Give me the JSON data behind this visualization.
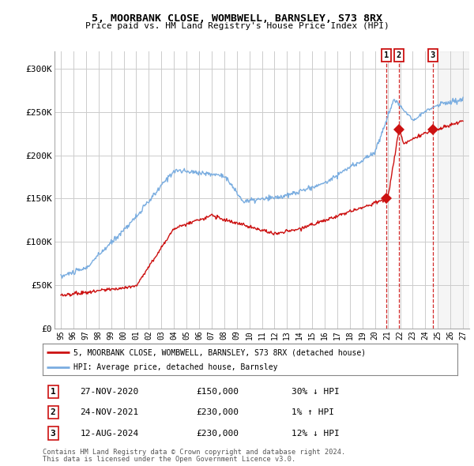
{
  "title": "5, MOORBANK CLOSE, WOMBWELL, BARNSLEY, S73 8RX",
  "subtitle": "Price paid vs. HM Land Registry's House Price Index (HPI)",
  "ylim": [
    0,
    320000
  ],
  "yticks": [
    0,
    50000,
    100000,
    150000,
    200000,
    250000,
    300000
  ],
  "ytick_labels": [
    "£0",
    "£50K",
    "£100K",
    "£150K",
    "£200K",
    "£250K",
    "£300K"
  ],
  "hpi_color": "#7aade0",
  "price_color": "#cc1111",
  "marker_color": "#cc1111",
  "dashed_color": "#cc1111",
  "background_color": "#ffffff",
  "grid_color": "#cccccc",
  "transactions": [
    {
      "num": 1,
      "date": "27-NOV-2020",
      "price": 150000,
      "pct": "30%",
      "dir": "↓",
      "x": 2020.9
    },
    {
      "num": 2,
      "date": "24-NOV-2021",
      "price": 230000,
      "pct": "1%",
      "dir": "↑",
      "x": 2021.9
    },
    {
      "num": 3,
      "date": "12-AUG-2024",
      "price": 230000,
      "pct": "12%",
      "dir": "↓",
      "x": 2024.6
    }
  ],
  "xlim": [
    1994.5,
    2027.5
  ],
  "footer_line1": "Contains HM Land Registry data © Crown copyright and database right 2024.",
  "footer_line2": "This data is licensed under the Open Government Licence v3.0.",
  "legend_label_red": "5, MOORBANK CLOSE, WOMBWELL, BARNSLEY, S73 8RX (detached house)",
  "legend_label_blue": "HPI: Average price, detached house, Barnsley"
}
